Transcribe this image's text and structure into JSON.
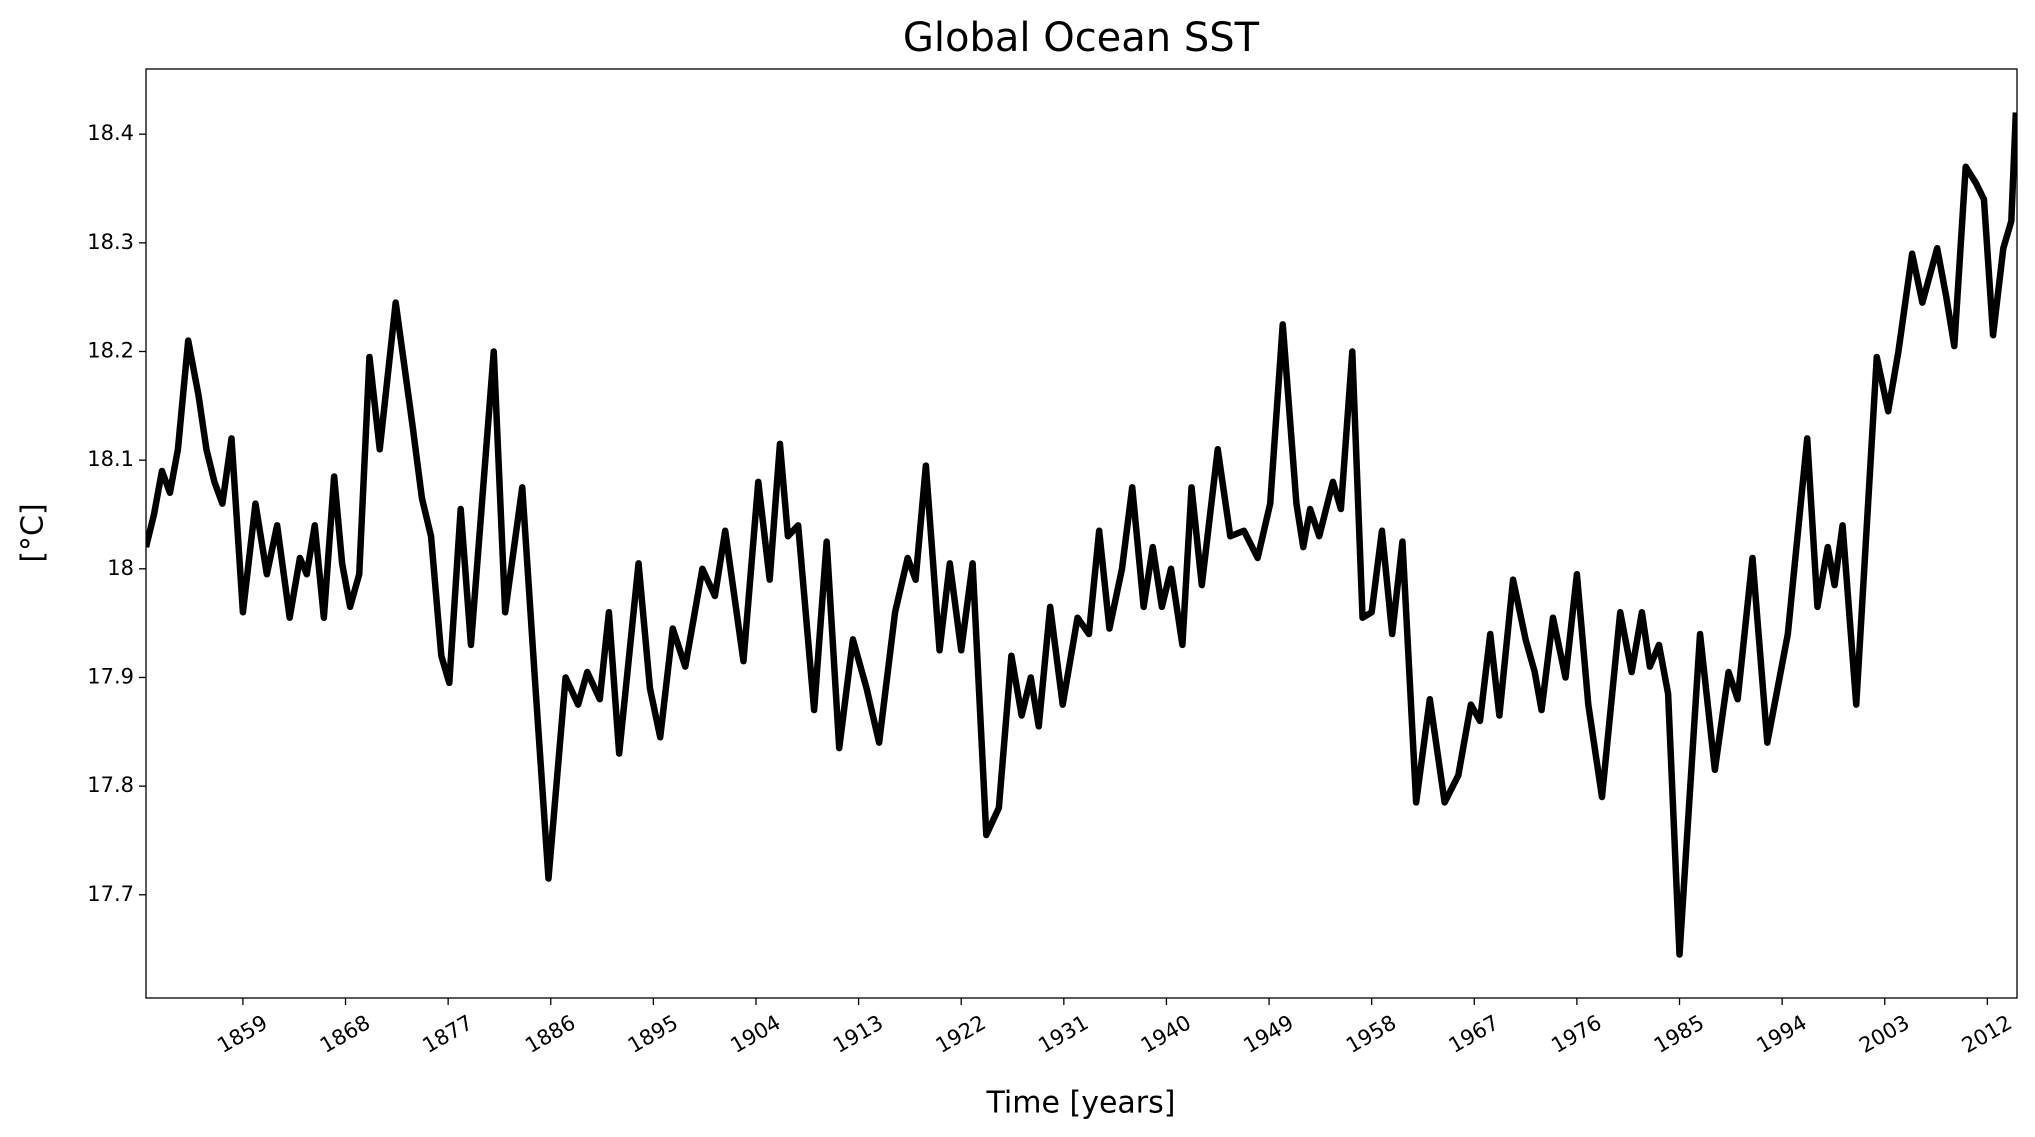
{
  "chart_data": {
    "type": "line",
    "title": "Global Ocean SST",
    "xlabel": "Time [years]",
    "ylabel": "[°C]",
    "x": [
      1850.5,
      1851.2,
      1851.9,
      1852.6,
      1853.3,
      1854.2,
      1855.1,
      1855.8,
      1856.5,
      1857.2,
      1858.0,
      1859.0,
      1860.1,
      1861.1,
      1862.0,
      1863.1,
      1864.0,
      1864.6,
      1865.3,
      1866.1,
      1867.0,
      1867.7,
      1868.4,
      1869.2,
      1870.1,
      1871.0,
      1872.4,
      1873.9,
      1874.7,
      1875.5,
      1876.4,
      1877.1,
      1878.1,
      1879.0,
      1881.0,
      1882.0,
      1883.5,
      1884.6,
      1885.8,
      1887.3,
      1888.4,
      1889.2,
      1890.3,
      1891.1,
      1892.0,
      1893.7,
      1894.7,
      1895.6,
      1896.7,
      1897.8,
      1899.3,
      1900.4,
      1901.3,
      1902.9,
      1904.2,
      1905.2,
      1906.1,
      1906.8,
      1907.7,
      1909.1,
      1910.2,
      1911.3,
      1912.5,
      1913.7,
      1914.8,
      1916.2,
      1917.3,
      1918.0,
      1918.9,
      1920.1,
      1921.0,
      1922.0,
      1923.0,
      1924.2,
      1925.3,
      1926.4,
      1927.3,
      1928.1,
      1928.8,
      1929.8,
      1930.9,
      1932.2,
      1933.2,
      1934.1,
      1935.0,
      1936.1,
      1937.0,
      1938.0,
      1938.8,
      1939.6,
      1940.4,
      1941.4,
      1942.2,
      1943.1,
      1944.5,
      1945.6,
      1946.8,
      1948.0,
      1949.1,
      1950.2,
      1951.4,
      1952.0,
      1952.6,
      1953.4,
      1954.6,
      1955.3,
      1956.3,
      1957.2,
      1958.0,
      1958.9,
      1959.8,
      1960.7,
      1961.9,
      1963.1,
      1964.4,
      1965.6,
      1966.7,
      1967.5,
      1968.4,
      1969.2,
      1970.4,
      1971.5,
      1972.3,
      1972.9,
      1973.9,
      1975.0,
      1976.0,
      1977.0,
      1978.2,
      1979.8,
      1980.8,
      1981.7,
      1982.4,
      1983.2,
      1984.0,
      1985.0,
      1986.8,
      1988.1,
      1989.3,
      1990.1,
      1991.4,
      1992.7,
      1994.5,
      1996.2,
      1997.1,
      1998.0,
      1998.6,
      1999.3,
      2000.5,
      2002.3,
      2003.3,
      2004.2,
      2005.4,
      2006.3,
      2007.6,
      2008.4,
      2009.1,
      2010.1,
      2011.0,
      2011.7,
      2012.5,
      2013.4,
      2014.1,
      2014.5
    ],
    "series": [
      {
        "name": "Global Ocean SST",
        "color": "#000000",
        "values": [
          18.02,
          18.05,
          18.09,
          18.07,
          18.11,
          18.21,
          18.16,
          18.11,
          18.08,
          18.06,
          18.12,
          17.96,
          18.06,
          17.995,
          18.04,
          17.955,
          18.01,
          17.995,
          18.04,
          17.955,
          18.085,
          18.005,
          17.965,
          17.995,
          18.195,
          18.11,
          18.245,
          18.13,
          18.065,
          18.03,
          17.92,
          17.895,
          18.055,
          17.93,
          18.2,
          17.96,
          18.075,
          17.9,
          17.715,
          17.9,
          17.875,
          17.905,
          17.88,
          17.96,
          17.83,
          18.005,
          17.89,
          17.845,
          17.945,
          17.91,
          18.0,
          17.975,
          18.035,
          17.915,
          18.08,
          17.99,
          18.115,
          18.03,
          18.04,
          17.87,
          18.025,
          17.835,
          17.935,
          17.89,
          17.84,
          17.96,
          18.01,
          17.99,
          18.095,
          17.925,
          18.005,
          17.925,
          18.005,
          17.755,
          17.78,
          17.92,
          17.865,
          17.9,
          17.855,
          17.965,
          17.875,
          17.955,
          17.94,
          18.035,
          17.945,
          18.0,
          18.075,
          17.965,
          18.02,
          17.965,
          18.0,
          17.93,
          18.075,
          17.985,
          18.11,
          18.03,
          18.035,
          18.01,
          18.06,
          18.225,
          18.06,
          18.02,
          18.055,
          18.03,
          18.08,
          18.055,
          18.2,
          17.955,
          17.96,
          18.035,
          17.94,
          18.025,
          17.785,
          17.88,
          17.785,
          17.81,
          17.875,
          17.86,
          17.94,
          17.865,
          17.99,
          17.935,
          17.905,
          17.87,
          17.955,
          17.9,
          17.995,
          17.875,
          17.79,
          17.96,
          17.905,
          17.96,
          17.91,
          17.93,
          17.885,
          17.645,
          17.94,
          17.815,
          17.905,
          17.88,
          18.01,
          17.84,
          17.94,
          18.12,
          17.965,
          18.02,
          17.985,
          18.04,
          17.875,
          18.195,
          18.145,
          18.2,
          18.29,
          18.245,
          18.295,
          18.25,
          18.205,
          18.37,
          18.355,
          18.34,
          18.215,
          18.295,
          18.32,
          18.42
        ]
      }
    ],
    "xlim": [
      1850.5,
      2014.6
    ],
    "ylim": [
      17.605,
      18.46
    ],
    "xticks": [
      1859,
      1868,
      1877,
      1886,
      1895,
      1904,
      1913,
      1922,
      1931,
      1940,
      1949,
      1958,
      1967,
      1976,
      1985,
      1994,
      2003,
      2012
    ],
    "yticks": [
      17.7,
      17.8,
      17.9,
      18.0,
      18.1,
      18.2,
      18.3,
      18.4
    ],
    "grid": false
  }
}
